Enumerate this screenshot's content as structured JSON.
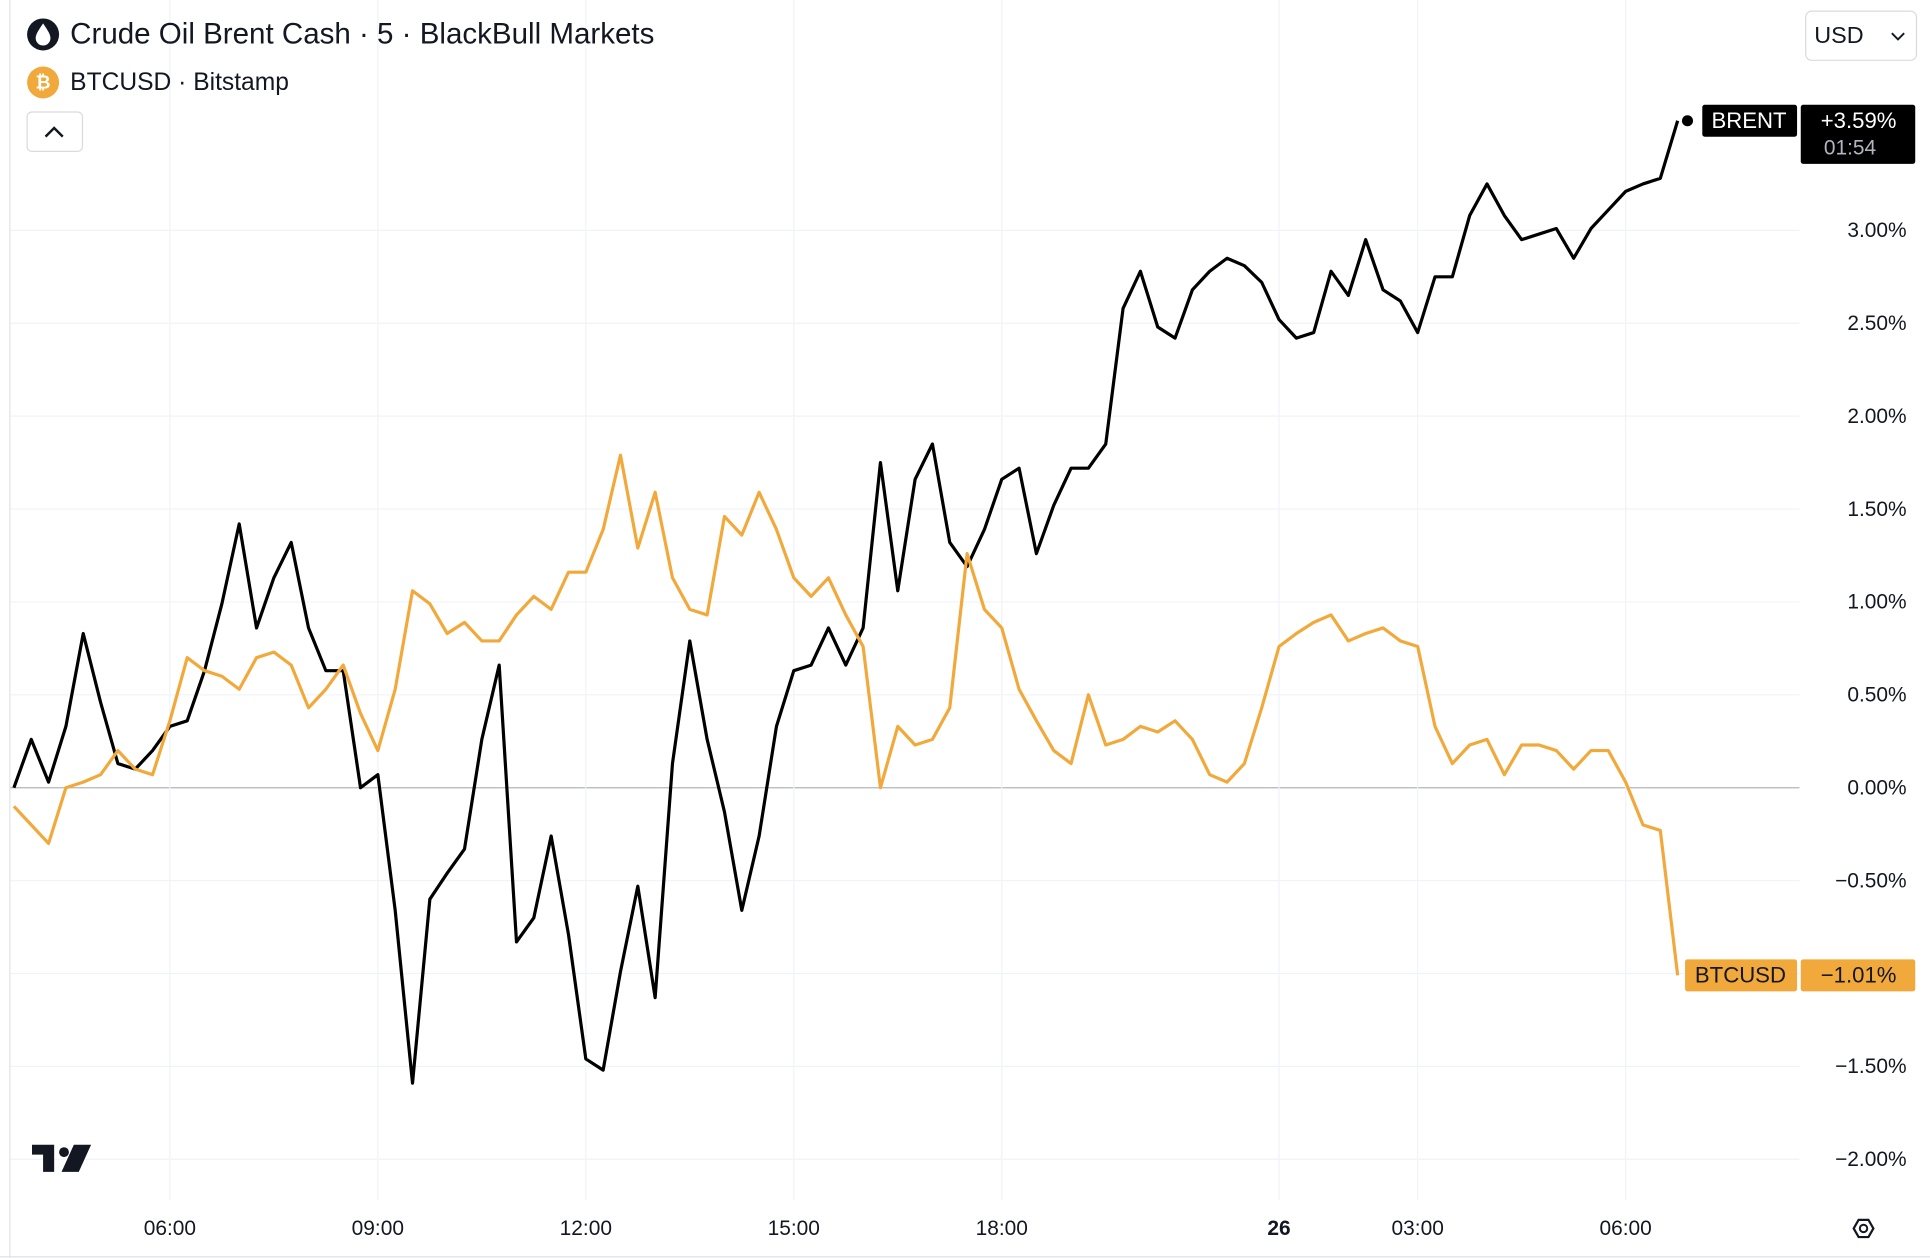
{
  "chart_data": {
    "type": "line",
    "title": "Crude Oil Brent Cash · 5 · BlackBull Markets",
    "subtitle": "BTCUSD · Bitstamp",
    "currency": "USD",
    "categories": [
      null,
      null,
      null,
      null,
      null,
      null,
      null,
      null,
      null,
      "06:00",
      null,
      null,
      null,
      null,
      null,
      null,
      null,
      null,
      null,
      null,
      null,
      "09:00",
      null,
      null,
      null,
      null,
      null,
      null,
      null,
      null,
      null,
      null,
      null,
      "12:00",
      null,
      null,
      null,
      null,
      null,
      null,
      null,
      null,
      null,
      null,
      null,
      "15:00",
      null,
      null,
      null,
      null,
      null,
      null,
      null,
      null,
      null,
      null,
      null,
      "18:00",
      null,
      null,
      null,
      null,
      null,
      null,
      null,
      null,
      null,
      null,
      null,
      null,
      null,
      null,
      null,
      "26",
      null,
      null,
      null,
      null,
      null,
      null,
      null,
      "03:00",
      null,
      null,
      null,
      null,
      null,
      null,
      null,
      null,
      null,
      null,
      null,
      "06:00",
      null,
      null,
      null
    ],
    "series": [
      {
        "name": "BRENT",
        "color": "#000000",
        "countdown": "01:54",
        "values": [
          0,
          0.26,
          0.03,
          0.33,
          0.83,
          0.46,
          0.13,
          0.1,
          0.2,
          0.33,
          0.36,
          0.63,
          0.99,
          1.42,
          0.86,
          1.13,
          1.32,
          0.86,
          0.63,
          0.63,
          0,
          0.07,
          -0.66,
          -1.59,
          -0.6,
          -0.46,
          -0.33,
          0.26,
          0.66,
          -0.83,
          -0.7,
          -0.26,
          -0.79,
          -1.46,
          -1.52,
          -0.99,
          -0.53,
          -1.13,
          0.13,
          0.79,
          0.26,
          -0.13,
          -0.66,
          -0.26,
          0.33,
          0.63,
          0.66,
          0.86,
          0.66,
          0.86,
          1.75,
          1.06,
          1.66,
          1.85,
          1.32,
          1.19,
          1.39,
          1.66,
          1.72,
          1.26,
          1.52,
          1.72,
          1.72,
          1.85,
          2.58,
          2.78,
          2.48,
          2.42,
          2.68,
          2.78,
          2.85,
          2.81,
          2.72,
          2.52,
          2.42,
          2.45,
          2.78,
          2.65,
          2.95,
          2.68,
          2.62,
          2.45,
          2.75,
          2.75,
          3.08,
          3.25,
          3.08,
          2.95,
          2.98,
          3.01,
          2.85,
          3.01,
          3.11,
          3.21,
          3.25,
          3.28,
          3.59
        ],
        "value_labels": [
          null,
          null,
          null,
          null,
          null,
          null,
          null,
          null,
          null,
          null,
          null,
          null,
          null,
          null,
          null,
          null,
          null,
          null,
          null,
          null,
          null,
          null,
          null,
          null,
          null,
          null,
          null,
          null,
          null,
          null,
          null,
          null,
          null,
          null,
          null,
          null,
          null,
          null,
          null,
          null,
          null,
          null,
          null,
          null,
          null,
          null,
          null,
          null,
          null,
          null,
          null,
          null,
          null,
          null,
          null,
          null,
          null,
          null,
          null,
          null,
          null,
          null,
          null,
          null,
          null,
          null,
          null,
          null,
          null,
          null,
          null,
          null,
          null,
          null,
          null,
          null,
          null,
          null,
          null,
          null,
          null,
          null,
          null,
          null,
          null,
          null,
          null,
          null,
          null,
          null,
          null,
          null,
          null,
          null,
          null,
          null,
          "+3.59%"
        ]
      },
      {
        "name": "BTCUSD",
        "color": "#f2a93b",
        "values": [
          -0.1,
          -0.2,
          -0.3,
          0,
          0.03,
          0.07,
          0.2,
          0.1,
          0.07,
          0.36,
          0.7,
          0.63,
          0.6,
          0.53,
          0.7,
          0.73,
          0.66,
          0.43,
          0.53,
          0.66,
          0.4,
          0.2,
          0.53,
          1.06,
          0.99,
          0.83,
          0.89,
          0.79,
          0.79,
          0.93,
          1.03,
          0.96,
          1.16,
          1.16,
          1.39,
          1.79,
          1.29,
          1.59,
          1.13,
          0.96,
          0.93,
          1.46,
          1.36,
          1.59,
          1.39,
          1.13,
          1.03,
          1.13,
          0.93,
          0.76,
          0,
          0.33,
          0.23,
          0.26,
          0.43,
          1.26,
          0.96,
          0.86,
          0.53,
          0.36,
          0.2,
          0.13,
          0.5,
          0.23,
          0.26,
          0.33,
          0.3,
          0.36,
          0.26,
          0.07,
          0.03,
          0.13,
          0.43,
          0.76,
          0.83,
          0.89,
          0.93,
          0.79,
          0.83,
          0.86,
          0.79,
          0.76,
          0.33,
          0.13,
          0.23,
          0.26,
          0.07,
          0.23,
          0.23,
          0.2,
          0.1,
          0.2,
          0.2,
          0.03,
          -0.2,
          -0.23,
          -1.01
        ],
        "value_labels": [
          null,
          null,
          null,
          null,
          null,
          null,
          null,
          null,
          null,
          null,
          null,
          null,
          null,
          null,
          null,
          null,
          null,
          null,
          null,
          null,
          null,
          null,
          null,
          null,
          null,
          null,
          null,
          null,
          null,
          null,
          null,
          null,
          null,
          null,
          null,
          null,
          null,
          null,
          null,
          null,
          null,
          null,
          null,
          null,
          null,
          null,
          null,
          null,
          null,
          null,
          null,
          null,
          null,
          null,
          null,
          null,
          null,
          null,
          null,
          null,
          null,
          null,
          null,
          null,
          null,
          null,
          null,
          null,
          null,
          null,
          null,
          null,
          null,
          null,
          null,
          null,
          null,
          null,
          null,
          null,
          null,
          null,
          null,
          null,
          null,
          null,
          null,
          null,
          null,
          null,
          null,
          null,
          null,
          null,
          null,
          null,
          "−1.01%"
        ]
      }
    ],
    "ylim": [
      -2.22,
      4.24
    ],
    "yticks": [
      {
        "value": -2,
        "label": "−2.00%"
      },
      {
        "value": -1.5,
        "label": "−1.50%"
      },
      {
        "value": -1,
        "label": "−1.00%"
      },
      {
        "value": -0.5,
        "label": "−0.50%"
      },
      {
        "value": 0,
        "label": "0.00%"
      },
      {
        "value": 0.5,
        "label": "0.50%"
      },
      {
        "value": 1,
        "label": "1.00%"
      },
      {
        "value": 1.5,
        "label": "1.50%"
      },
      {
        "value": 2,
        "label": "2.00%"
      },
      {
        "value": 2.5,
        "label": "2.50%"
      },
      {
        "value": 3,
        "label": "3.00%"
      }
    ],
    "grid": true
  }
}
